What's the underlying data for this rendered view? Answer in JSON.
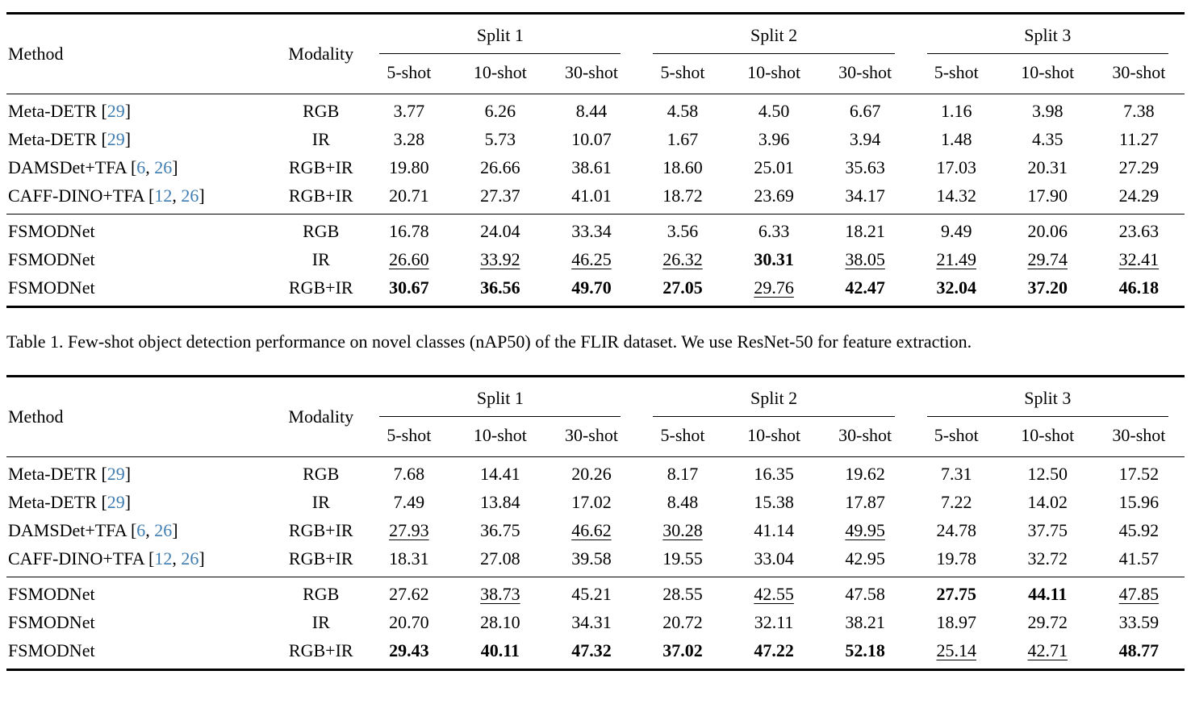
{
  "colors": {
    "citation_blue": "#3E7CB1",
    "rule_black": "#000000",
    "text_black": "#000000"
  },
  "caption": {
    "text": "Table 1. Few-shot object detection performance on novel classes (nAP50) of the FLIR dataset. We use ResNet-50 for feature extraction."
  },
  "header": {
    "method": "Method",
    "modality": "Modality",
    "splits": [
      "Split 1",
      "Split 2",
      "Split 3"
    ],
    "shots": [
      "5-shot",
      "10-shot",
      "30-shot"
    ]
  },
  "style_legend": {
    "": "plain",
    "b": "bold (best)",
    "u": "underlined (second best)"
  },
  "tables": [
    {
      "name": "flir-novel-nap50-table",
      "groups": [
        {
          "rows": [
            {
              "method": "Meta-DETR",
              "refs": [
                "29"
              ],
              "modality": "RGB",
              "values": [
                "3.77",
                "6.26",
                "8.44",
                "4.58",
                "4.50",
                "6.67",
                "1.16",
                "3.98",
                "7.38"
              ],
              "styles": [
                "",
                "",
                "",
                "",
                "",
                "",
                "",
                "",
                ""
              ]
            },
            {
              "method": "Meta-DETR",
              "refs": [
                "29"
              ],
              "modality": "IR",
              "values": [
                "3.28",
                "5.73",
                "10.07",
                "1.67",
                "3.96",
                "3.94",
                "1.48",
                "4.35",
                "11.27"
              ],
              "styles": [
                "",
                "",
                "",
                "",
                "",
                "",
                "",
                "",
                ""
              ]
            },
            {
              "method": "DAMSDet+TFA",
              "refs": [
                "6",
                "26"
              ],
              "modality": "RGB+IR",
              "values": [
                "19.80",
                "26.66",
                "38.61",
                "18.60",
                "25.01",
                "35.63",
                "17.03",
                "20.31",
                "27.29"
              ],
              "styles": [
                "",
                "",
                "",
                "",
                "",
                "",
                "",
                "",
                ""
              ]
            },
            {
              "method": "CAFF-DINO+TFA",
              "refs": [
                "12",
                "26"
              ],
              "modality": "RGB+IR",
              "values": [
                "20.71",
                "27.37",
                "41.01",
                "18.72",
                "23.69",
                "34.17",
                "14.32",
                "17.90",
                "24.29"
              ],
              "styles": [
                "",
                "",
                "",
                "",
                "",
                "",
                "",
                "",
                ""
              ]
            }
          ]
        },
        {
          "rows": [
            {
              "method": "FSMODNet",
              "refs": [],
              "modality": "RGB",
              "values": [
                "16.78",
                "24.04",
                "33.34",
                "3.56",
                "6.33",
                "18.21",
                "9.49",
                "20.06",
                "23.63"
              ],
              "styles": [
                "",
                "",
                "",
                "",
                "",
                "",
                "",
                "",
                ""
              ]
            },
            {
              "method": "FSMODNet",
              "refs": [],
              "modality": "IR",
              "values": [
                "26.60",
                "33.92",
                "46.25",
                "26.32",
                "30.31",
                "38.05",
                "21.49",
                "29.74",
                "32.41"
              ],
              "styles": [
                "u",
                "u",
                "u",
                "u",
                "b",
                "u",
                "u",
                "u",
                "u"
              ]
            },
            {
              "method": "FSMODNet",
              "refs": [],
              "modality": "RGB+IR",
              "values": [
                "30.67",
                "36.56",
                "49.70",
                "27.05",
                "29.76",
                "42.47",
                "32.04",
                "37.20",
                "46.18"
              ],
              "styles": [
                "b",
                "b",
                "b",
                "b",
                "u",
                "b",
                "b",
                "b",
                "b"
              ]
            }
          ]
        }
      ]
    },
    {
      "name": "second-results-table",
      "groups": [
        {
          "rows": [
            {
              "method": "Meta-DETR",
              "refs": [
                "29"
              ],
              "modality": "RGB",
              "values": [
                "7.68",
                "14.41",
                "20.26",
                "8.17",
                "16.35",
                "19.62",
                "7.31",
                "12.50",
                "17.52"
              ],
              "styles": [
                "",
                "",
                "",
                "",
                "",
                "",
                "",
                "",
                ""
              ]
            },
            {
              "method": "Meta-DETR",
              "refs": [
                "29"
              ],
              "modality": "IR",
              "values": [
                "7.49",
                "13.84",
                "17.02",
                "8.48",
                "15.38",
                "17.87",
                "7.22",
                "14.02",
                "15.96"
              ],
              "styles": [
                "",
                "",
                "",
                "",
                "",
                "",
                "",
                "",
                ""
              ]
            },
            {
              "method": "DAMSDet+TFA",
              "refs": [
                "6",
                "26"
              ],
              "modality": "RGB+IR",
              "values": [
                "27.93",
                "36.75",
                "46.62",
                "30.28",
                "41.14",
                "49.95",
                "24.78",
                "37.75",
                "45.92"
              ],
              "styles": [
                "u",
                "",
                "u",
                "u",
                "",
                "u",
                "",
                "",
                ""
              ]
            },
            {
              "method": "CAFF-DINO+TFA",
              "refs": [
                "12",
                "26"
              ],
              "modality": "RGB+IR",
              "values": [
                "18.31",
                "27.08",
                "39.58",
                "19.55",
                "33.04",
                "42.95",
                "19.78",
                "32.72",
                "41.57"
              ],
              "styles": [
                "",
                "",
                "",
                "",
                "",
                "",
                "",
                "",
                ""
              ]
            }
          ]
        },
        {
          "rows": [
            {
              "method": "FSMODNet",
              "refs": [],
              "modality": "RGB",
              "values": [
                "27.62",
                "38.73",
                "45.21",
                "28.55",
                "42.55",
                "47.58",
                "27.75",
                "44.11",
                "47.85"
              ],
              "styles": [
                "",
                "u",
                "",
                "",
                "u",
                "",
                "b",
                "b",
                "u"
              ]
            },
            {
              "method": "FSMODNet",
              "refs": [],
              "modality": "IR",
              "values": [
                "20.70",
                "28.10",
                "34.31",
                "20.72",
                "32.11",
                "38.21",
                "18.97",
                "29.72",
                "33.59"
              ],
              "styles": [
                "",
                "",
                "",
                "",
                "",
                "",
                "",
                "",
                ""
              ]
            },
            {
              "method": "FSMODNet",
              "refs": [],
              "modality": "RGB+IR",
              "values": [
                "29.43",
                "40.11",
                "47.32",
                "37.02",
                "47.22",
                "52.18",
                "25.14",
                "42.71",
                "48.77"
              ],
              "styles": [
                "b",
                "b",
                "b",
                "b",
                "b",
                "b",
                "u",
                "u",
                "b"
              ]
            }
          ]
        }
      ]
    }
  ]
}
